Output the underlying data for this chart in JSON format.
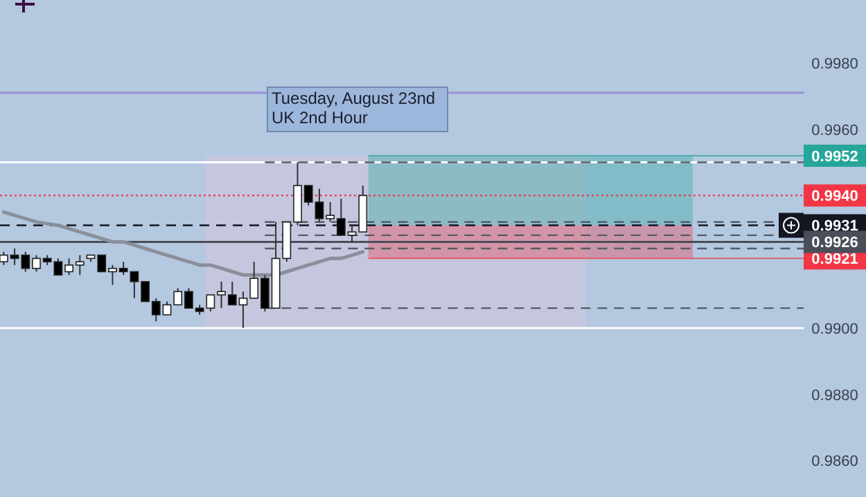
{
  "chart_data": {
    "type": "candlestick",
    "categories": [
      null,
      null,
      null,
      null,
      null,
      null,
      null,
      null,
      null,
      null,
      null,
      null,
      null,
      null,
      null,
      null,
      null,
      null,
      null,
      null,
      null,
      null,
      null,
      null,
      null,
      null,
      null,
      null,
      null,
      null,
      null,
      null,
      null,
      null,
      null,
      null,
      null,
      null,
      null,
      null,
      null,
      null,
      null,
      null,
      null,
      null,
      null,
      null,
      null,
      null,
      null,
      null,
      null,
      null,
      null,
      null,
      null,
      null,
      null,
      null,
      null,
      null,
      null,
      null,
      null,
      null,
      null,
      null,
      null,
      null,
      null,
      null,
      null,
      null
    ],
    "ohlc": [
      [
        0.992,
        0.9923,
        0.9919,
        0.9922
      ],
      [
        0.9922,
        0.9924,
        0.9919,
        0.9921
      ],
      [
        0.9922,
        0.9923,
        0.9917,
        0.9918
      ],
      [
        0.9918,
        0.9922,
        0.9917,
        0.9921
      ],
      [
        0.9921,
        0.9922,
        0.9919,
        0.992
      ],
      [
        0.992,
        0.9921,
        0.9916,
        0.9916
      ],
      [
        0.9917,
        0.9921,
        0.9916,
        0.9919
      ],
      [
        0.9919,
        0.9922,
        0.9916,
        0.992
      ],
      [
        0.9921,
        0.9922,
        0.992,
        0.9922
      ],
      [
        0.9922,
        0.9922,
        0.9917,
        0.9917
      ],
      [
        0.9917,
        0.9919,
        0.9913,
        0.9918
      ],
      [
        0.9918,
        0.992,
        0.9916,
        0.9917
      ],
      [
        0.9917,
        0.9917,
        0.9909,
        0.9914
      ],
      [
        0.9914,
        0.9914,
        0.9908,
        0.9908
      ],
      [
        0.9908,
        0.9909,
        0.9902,
        0.9904
      ],
      [
        0.9904,
        0.9908,
        0.9904,
        0.9907
      ],
      [
        0.9907,
        0.9912,
        0.9907,
        0.9911
      ],
      [
        0.9911,
        0.9912,
        0.9906,
        0.9906
      ],
      [
        0.9906,
        0.9907,
        0.9904,
        0.9905
      ],
      [
        0.9906,
        0.991,
        0.9905,
        0.991
      ],
      [
        0.991,
        0.9914,
        0.9906,
        0.9911
      ],
      [
        0.991,
        0.9914,
        0.9907,
        0.9907
      ],
      [
        0.9907,
        0.9911,
        0.99,
        0.9909
      ],
      [
        0.9909,
        0.992,
        0.9909,
        0.9915
      ],
      [
        0.9915,
        0.9916,
        0.9905,
        0.9906
      ],
      [
        0.9906,
        0.9932,
        0.9906,
        0.9921
      ],
      [
        0.9921,
        0.9932,
        0.992,
        0.9932
      ],
      [
        0.9932,
        0.995,
        0.9931,
        0.9943
      ],
      [
        0.9943,
        0.9943,
        0.9937,
        0.9938
      ],
      [
        0.9938,
        0.9942,
        0.9932,
        0.9933
      ],
      [
        0.9933,
        0.9938,
        0.9932,
        0.9934
      ],
      [
        0.9933,
        0.9939,
        0.9928,
        0.9928
      ],
      [
        0.9928,
        0.9931,
        0.9926,
        0.9929
      ],
      [
        0.9929,
        0.9943,
        0.9929,
        0.994
      ],
      null,
      null,
      null,
      null,
      null,
      null,
      null,
      null,
      null,
      null,
      null,
      null,
      null,
      null,
      null,
      null,
      null,
      null,
      null,
      null,
      null,
      null,
      null,
      null,
      null,
      null,
      null,
      null,
      null,
      null,
      null,
      null,
      null,
      null,
      null,
      null,
      null,
      null,
      null,
      null
    ],
    "series": [
      {
        "type": "line",
        "color": "#8a8f9a",
        "values": [
          0.9935,
          0.9934,
          0.9933,
          0.9932,
          0.99315,
          0.9931,
          0.993,
          0.9929,
          0.9928,
          0.9927,
          0.9926,
          0.9926,
          0.9925,
          0.9924,
          0.9923,
          0.9922,
          0.9921,
          0.992,
          0.9919,
          0.9919,
          0.9918,
          0.9917,
          0.9916,
          0.9916,
          0.9916,
          0.9916,
          0.9917,
          0.9918,
          0.9919,
          0.992,
          0.9921,
          0.9921,
          0.9922,
          0.9923,
          null,
          null,
          null,
          null,
          null,
          null,
          null,
          null,
          null,
          null,
          null,
          null,
          null,
          null,
          null,
          null,
          null,
          null,
          null,
          null,
          null,
          null,
          null,
          null,
          null,
          null,
          null,
          null,
          null,
          null,
          null,
          null,
          null,
          null,
          null,
          null,
          null,
          null,
          null,
          null
        ]
      }
    ],
    "ylim": [
      0.9849,
      0.9999
    ],
    "yticks": [
      {
        "value": 0.986,
        "label": "0.9860"
      },
      {
        "value": 0.988,
        "label": "0.9880"
      },
      {
        "value": 0.99,
        "label": "0.9900"
      },
      {
        "value": 0.996,
        "label": "0.9960"
      },
      {
        "value": 0.998,
        "label": "0.9980"
      }
    ],
    "ref_lines": [
      {
        "axis": "y",
        "value": 0.9971,
        "color": "#9b8fd6",
        "line_style": "solid"
      },
      {
        "axis": "y",
        "value": 0.995,
        "color": "#ffffff",
        "line_style": "solid"
      },
      {
        "axis": "y",
        "value": 0.99,
        "color": "#ffffff",
        "line_style": "solid"
      },
      {
        "axis": "y",
        "value": 0.995,
        "color": "#555a66",
        "line_style": "dashed"
      },
      {
        "axis": "y",
        "value": 0.9932,
        "color": "#555a66",
        "line_style": "dashed"
      },
      {
        "axis": "y",
        "value": 0.9928,
        "color": "#555a66",
        "line_style": "dashed"
      },
      {
        "axis": "y",
        "value": 0.9924,
        "color": "#555a66",
        "line_style": "dashed"
      },
      {
        "axis": "y",
        "value": 0.9906,
        "color": "#555a66",
        "line_style": "dashed"
      },
      {
        "axis": "y",
        "value": 0.994,
        "label": "0.9940",
        "color": "#f23645",
        "line_style": "dotted"
      },
      {
        "axis": "y",
        "value": 0.9931,
        "label": "0.9931",
        "color": "#131722",
        "line_style": "dashed"
      },
      {
        "axis": "y",
        "value": 0.9926,
        "label": "0.9926",
        "color": "#4a4e59",
        "line_style": "solid"
      }
    ],
    "bands": [
      {
        "axis": "y",
        "from": 0.9931,
        "to": 0.9952,
        "label": "0.9952",
        "color": "#26a69a"
      },
      {
        "axis": "y",
        "from": 0.9931,
        "to": 0.9921,
        "label": "0.9921",
        "color": "#f23645"
      }
    ],
    "annotations": [
      "Tuesday, August 23nd\nUK 2nd Hour"
    ],
    "grid": false
  }
}
